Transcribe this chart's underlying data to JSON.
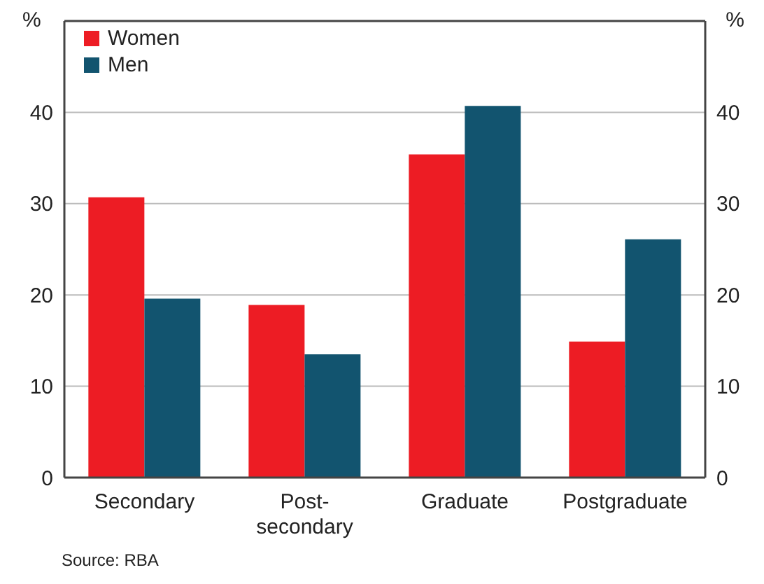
{
  "chart_data": {
    "type": "bar",
    "categories": [
      "Secondary",
      "Post-secondary",
      "Graduate",
      "Postgraduate"
    ],
    "series": [
      {
        "name": "Women",
        "color": "#ed1c24",
        "values": [
          30.7,
          18.9,
          35.4,
          14.9
        ]
      },
      {
        "name": "Men",
        "color": "#12546f",
        "values": [
          19.6,
          13.5,
          40.7,
          26.1
        ]
      }
    ],
    "ylabel": "%",
    "y2label": "%",
    "ylim": [
      0,
      50
    ],
    "yticks": [
      0,
      10,
      20,
      30,
      40
    ],
    "y2lim": [
      0,
      50
    ],
    "y2ticks": [
      0,
      10,
      20,
      30,
      40
    ],
    "grid": "y",
    "legend": "top left",
    "annotations": [
      "Source: RBA"
    ]
  }
}
